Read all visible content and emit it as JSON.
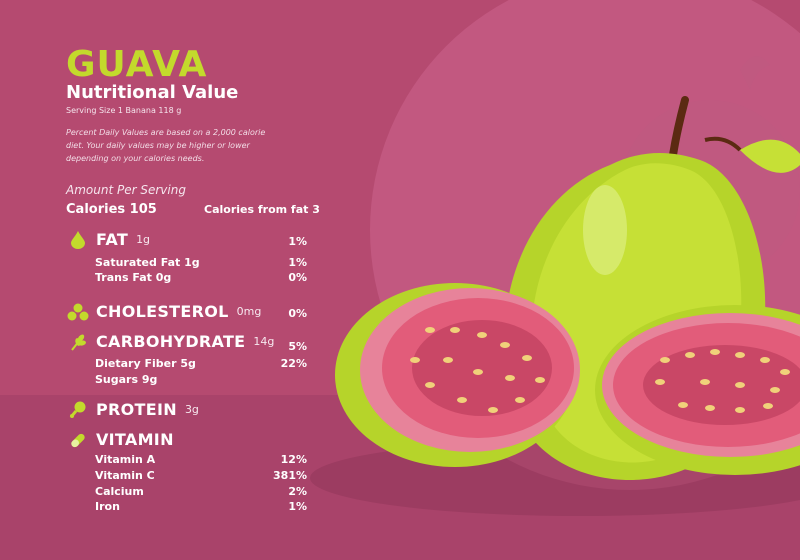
{
  "header": {
    "title": "GUAVA",
    "subtitle": "Nutritional Value",
    "serving": "Serving Size 1 Banana 118 g",
    "note": "Percent Daily Values are based on a 2,000 calorie diet. Your daily values may be higher or lower depending on your calories needs."
  },
  "amount_label": "Amount Per Serving",
  "calories": "Calories 105",
  "calories_fat": "Calories from fat 3",
  "fat": {
    "name": "FAT",
    "amount": "1g",
    "pct": "1%",
    "icon": "drop-icon",
    "rows": [
      {
        "label": "Saturated Fat 1g",
        "pct": "1%"
      },
      {
        "label": "Trans Fat 0g",
        "pct": "0%"
      }
    ]
  },
  "cholesterol": {
    "name": "CHOLESTEROL",
    "amount": "0mg",
    "pct": "0%",
    "icon": "bubbles-icon"
  },
  "carbohydrate": {
    "name": "CARBOHYDRATE",
    "amount": "14g",
    "pct": "5%",
    "icon": "wheat-icon",
    "rows": [
      {
        "label": "Dietary Fiber 5g",
        "pct": "22%"
      },
      {
        "label": "Sugars 9g",
        "pct": ""
      }
    ]
  },
  "protein": {
    "name": "PROTEIN",
    "amount": "3g",
    "icon": "drumstick-icon"
  },
  "vitamin": {
    "name": "VITAMIN",
    "icon": "pill-icon",
    "rows": [
      {
        "label": "Vitamin A",
        "pct": "12%"
      },
      {
        "label": "Vitamin C",
        "pct": "381%"
      },
      {
        "label": "Calcium",
        "pct": "2%"
      },
      {
        "label": "Iron",
        "pct": "1%"
      }
    ]
  },
  "colors": {
    "background": "#b54a70",
    "title": "#c3da2c",
    "guava_skin": "#c6e036",
    "guava_flesh": "#e25c7a",
    "seeds": "#f0d17a"
  }
}
